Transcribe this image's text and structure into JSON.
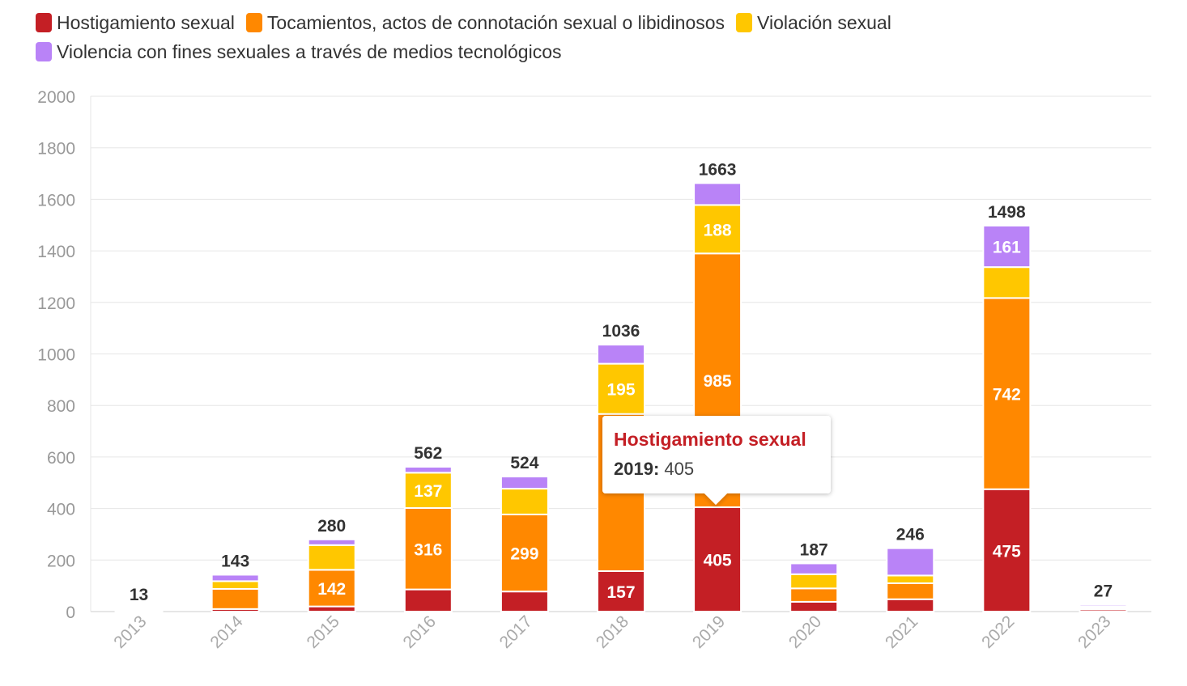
{
  "chart_data": {
    "type": "bar",
    "stacked": true,
    "categories": [
      "2013",
      "2014",
      "2015",
      "2016",
      "2017",
      "2018",
      "2019",
      "2020",
      "2021",
      "2022",
      "2023"
    ],
    "series": [
      {
        "name": "Hostigamiento sexual",
        "color": "#c41f25",
        "values": [
          5,
          10,
          20,
          86,
          78,
          157,
          405,
          38,
          48,
          475,
          8
        ]
      },
      {
        "name": "Tocamientos, actos de connotación sexual o libidinosos",
        "color": "#ff8800",
        "values": [
          4,
          78,
          142,
          316,
          299,
          610,
          985,
          52,
          62,
          742,
          6
        ]
      },
      {
        "name": "Violación sexual",
        "color": "#ffc700",
        "values": [
          2,
          30,
          96,
          137,
          100,
          195,
          188,
          55,
          30,
          120,
          6
        ]
      },
      {
        "name": "Violencia con fines sexuales a través de medios tecnológicos",
        "color": "#b983f7",
        "values": [
          2,
          25,
          22,
          23,
          47,
          74,
          85,
          42,
          106,
          161,
          7
        ]
      }
    ],
    "totals": [
      13,
      143,
      280,
      562,
      524,
      1036,
      1663,
      187,
      246,
      1498,
      27
    ],
    "segment_labels": [
      {
        "category": "2015",
        "series": 1,
        "text": "142"
      },
      {
        "category": "2016",
        "series": 1,
        "text": "316"
      },
      {
        "category": "2016",
        "series": 2,
        "text": "137"
      },
      {
        "category": "2017",
        "series": 1,
        "text": "299"
      },
      {
        "category": "2018",
        "series": 0,
        "text": "157"
      },
      {
        "category": "2018",
        "series": 2,
        "text": "195"
      },
      {
        "category": "2019",
        "series": 0,
        "text": "405"
      },
      {
        "category": "2019",
        "series": 1,
        "text": "985"
      },
      {
        "category": "2019",
        "series": 2,
        "text": "188"
      },
      {
        "category": "2022",
        "series": 0,
        "text": "475"
      },
      {
        "category": "2022",
        "series": 1,
        "text": "742"
      },
      {
        "category": "2022",
        "series": 3,
        "text": "161"
      }
    ],
    "ylim": [
      0,
      2000
    ],
    "yticks": [
      0,
      200,
      400,
      600,
      800,
      1000,
      1200,
      1400,
      1600,
      1800,
      2000
    ],
    "title": "",
    "xlabel": "",
    "ylabel": "",
    "grid": true,
    "legend_position": "top-left"
  },
  "tooltip": {
    "title": "Hostigamiento sexual",
    "key": "2019:",
    "value": "405",
    "color": "#c41f25"
  }
}
